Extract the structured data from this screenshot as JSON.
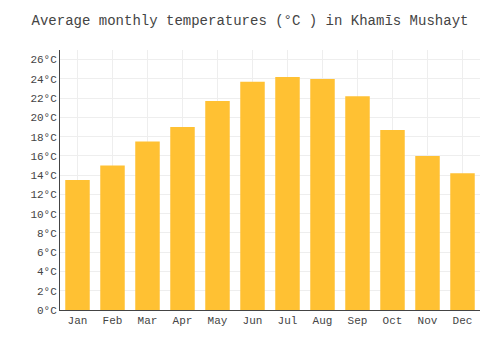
{
  "chart_data": {
    "type": "bar",
    "title": "Average monthly temperatures (°C ) in Khamīs Mushayt",
    "categories": [
      "Jan",
      "Feb",
      "Mar",
      "Apr",
      "May",
      "Jun",
      "Jul",
      "Aug",
      "Sep",
      "Oct",
      "Nov",
      "Dec"
    ],
    "values": [
      13.5,
      15.0,
      17.5,
      19.0,
      21.7,
      23.7,
      24.2,
      24.0,
      22.2,
      18.7,
      16.0,
      14.2
    ],
    "color": "#FFC133",
    "ylim": [
      0,
      27
    ],
    "yticks": [
      {
        "value": 0,
        "label": "0°C"
      },
      {
        "value": 2,
        "label": "2°C"
      },
      {
        "value": 4,
        "label": "4°C"
      },
      {
        "value": 6,
        "label": "6°C"
      },
      {
        "value": 8,
        "label": "8°C"
      },
      {
        "value": 10,
        "label": "10°C"
      },
      {
        "value": 12,
        "label": "12°C"
      },
      {
        "value": 14,
        "label": "14°C"
      },
      {
        "value": 16,
        "label": "16°C"
      },
      {
        "value": 18,
        "label": "18°C"
      },
      {
        "value": 20,
        "label": "20°C"
      },
      {
        "value": 22,
        "label": "22°C"
      },
      {
        "value": 24,
        "label": "24°C"
      },
      {
        "value": 26,
        "label": "26°C"
      }
    ],
    "grid": true
  }
}
